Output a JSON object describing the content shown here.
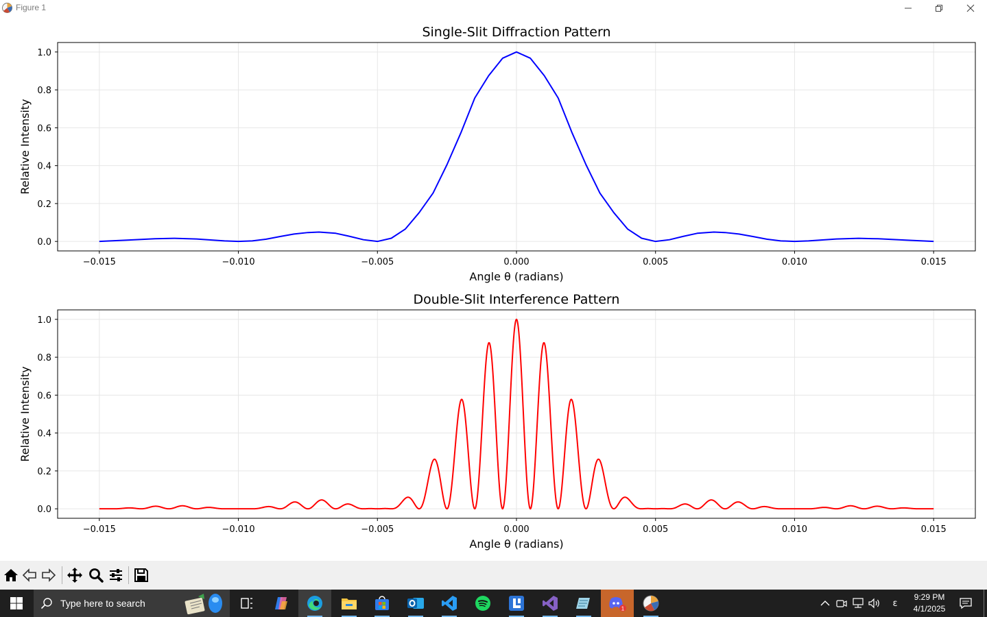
{
  "window": {
    "title": "Figure 1",
    "icons": {
      "app": "matplotlib-figure-icon",
      "minimize": "minimize-icon",
      "maximize": "restore-icon",
      "close": "close-icon"
    }
  },
  "chart_data": [
    {
      "type": "line",
      "title": "Single-Slit Diffraction Pattern",
      "xlabel": "Angle θ (radians)",
      "ylabel": "Relative Intensity",
      "xlim": [
        -0.0165,
        0.0165
      ],
      "ylim": [
        -0.05,
        1.05
      ],
      "xticks": [
        -0.015,
        -0.01,
        -0.005,
        0.0,
        0.005,
        0.01,
        0.015
      ],
      "xtick_labels": [
        "−0.015",
        "−0.010",
        "−0.005",
        "0.000",
        "0.005",
        "0.010",
        "0.015"
      ],
      "yticks": [
        0.0,
        0.2,
        0.4,
        0.6,
        0.8,
        1.0
      ],
      "ytick_labels": [
        "0.0",
        "0.2",
        "0.4",
        "0.6",
        "0.8",
        "1.0"
      ],
      "grid": true,
      "color": "#0000ff",
      "series": [
        {
          "x": [
            -0.015,
            -0.014,
            -0.013,
            -0.0123,
            -0.0115,
            -0.011,
            -0.0105,
            -0.01,
            -0.0095,
            -0.009,
            -0.0085,
            -0.008,
            -0.0075,
            -0.0071,
            -0.0065,
            -0.006,
            -0.0055,
            -0.005,
            -0.0045,
            -0.004,
            -0.0035,
            -0.003,
            -0.0025,
            -0.002,
            -0.0015,
            -0.001,
            -0.0005,
            0.0,
            0.0005,
            0.001,
            0.0015,
            0.002,
            0.0025,
            0.003,
            0.0035,
            0.004,
            0.0045,
            0.005,
            0.0055,
            0.006,
            0.0065,
            0.0071,
            0.0075,
            0.008,
            0.0085,
            0.009,
            0.0095,
            0.01,
            0.0105,
            0.011,
            0.0115,
            0.0123,
            0.013,
            0.014,
            0.015
          ],
          "y": [
            0.0,
            0.007,
            0.014,
            0.0165,
            0.013,
            0.008,
            0.003,
            0.0,
            0.003,
            0.012,
            0.026,
            0.039,
            0.047,
            0.0496,
            0.043,
            0.027,
            0.009,
            0.0,
            0.017,
            0.065,
            0.152,
            0.255,
            0.405,
            0.573,
            0.757,
            0.875,
            0.967,
            1.0,
            0.967,
            0.875,
            0.757,
            0.573,
            0.405,
            0.255,
            0.152,
            0.065,
            0.017,
            0.0,
            0.009,
            0.027,
            0.043,
            0.0496,
            0.047,
            0.039,
            0.026,
            0.012,
            0.003,
            0.0,
            0.003,
            0.008,
            0.013,
            0.0165,
            0.014,
            0.007,
            0.0
          ]
        }
      ]
    },
    {
      "type": "line",
      "title": "Double-Slit Interference Pattern",
      "xlabel": "Angle θ (radians)",
      "ylabel": "Relative Intensity",
      "xlim": [
        -0.0165,
        0.0165
      ],
      "ylim": [
        -0.05,
        1.05
      ],
      "xticks": [
        -0.015,
        -0.01,
        -0.005,
        0.0,
        0.005,
        0.01,
        0.015
      ],
      "xtick_labels": [
        "−0.015",
        "−0.010",
        "−0.005",
        "0.000",
        "0.005",
        "0.010",
        "0.015"
      ],
      "yticks": [
        0.0,
        0.2,
        0.4,
        0.6,
        0.8,
        1.0
      ],
      "ytick_labels": [
        "0.0",
        "0.2",
        "0.4",
        "0.6",
        "0.8",
        "1.0"
      ],
      "grid": true,
      "color": "#ff0000",
      "fringe_spacing": 0.001,
      "envelope_first_zero": 0.005,
      "series": [
        {
          "x": [
            -0.015,
            -0.0145,
            -0.014,
            -0.0135,
            -0.013,
            -0.0125,
            -0.012,
            -0.0115,
            -0.011,
            -0.0105,
            -0.01,
            -0.0095,
            -0.009,
            -0.0085,
            -0.008,
            -0.0075,
            -0.007,
            -0.0065,
            -0.006,
            -0.0055,
            -0.005,
            -0.0045,
            -0.004,
            -0.0035,
            -0.003,
            -0.0025,
            -0.002,
            -0.0015,
            -0.001,
            -0.0005,
            0.0,
            0.0005,
            0.001,
            0.0015,
            0.002,
            0.0025,
            0.003,
            0.0035,
            0.004,
            0.0045,
            0.005,
            0.0055,
            0.006,
            0.0065,
            0.007,
            0.0075,
            0.008,
            0.0085,
            0.009,
            0.0095,
            0.01,
            0.0105,
            0.011,
            0.0115,
            0.012,
            0.0125,
            0.013,
            0.0135,
            0.014,
            0.0145,
            0.015
          ],
          "y": [
            0.0,
            0.0,
            0.005,
            0.0,
            0.014,
            0.0,
            0.016,
            0.0,
            0.008,
            0.0,
            0.0,
            0.0,
            0.012,
            0.0,
            0.039,
            0.0,
            0.049,
            0.0,
            0.027,
            0.0,
            0.0,
            0.0,
            0.062,
            0.0,
            0.258,
            0.0,
            0.578,
            0.0,
            0.875,
            0.0,
            1.0,
            0.0,
            0.875,
            0.0,
            0.578,
            0.0,
            0.258,
            0.0,
            0.062,
            0.0,
            0.0,
            0.0,
            0.027,
            0.0,
            0.049,
            0.0,
            0.039,
            0.0,
            0.012,
            0.0,
            0.0,
            0.0,
            0.008,
            0.0,
            0.016,
            0.0,
            0.014,
            0.0,
            0.005,
            0.0,
            0.0
          ]
        }
      ]
    }
  ],
  "toolbar": {
    "buttons": [
      "home-icon",
      "back-icon",
      "forward-icon",
      "pan-icon",
      "zoom-icon",
      "configure-subplots-icon",
      "save-icon"
    ]
  },
  "taskbar": {
    "search_placeholder": "Type here to search",
    "apps": [
      "task-view-icon",
      "copilot-icon",
      "edge-icon",
      "file-explorer-icon",
      "microsoft-store-icon",
      "outlook-icon",
      "vscode-icon",
      "spotify-icon",
      "linear-icon",
      "visual-studio-icon",
      "notepad-icon",
      "discord-icon",
      "python-figure-icon"
    ],
    "active_app": "edge-icon",
    "discord_badge": "1",
    "time": "9:29 PM",
    "date": "4/1/2025",
    "ime_indicator": "ε"
  }
}
